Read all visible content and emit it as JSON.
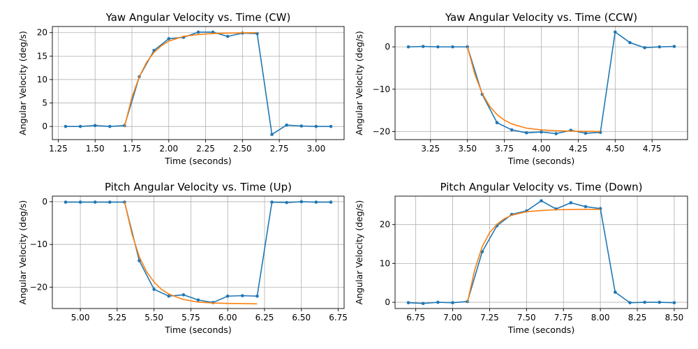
{
  "colors": {
    "measured": "#1f77b4",
    "fit": "#ff7f0e",
    "grid": "#b0b0b0",
    "axis": "#000000"
  },
  "chart_data": [
    {
      "type": "line",
      "title": "Yaw Angular Velocity vs. Time (CW)",
      "xlabel": "Time (seconds)",
      "ylabel": "Angular Velocity (deg/s)",
      "xlim": [
        1.21,
        3.19
      ],
      "ylim": [
        -2.8,
        21.3
      ],
      "xticks": [
        1.25,
        1.5,
        1.75,
        2.0,
        2.25,
        2.5,
        2.75,
        3.0
      ],
      "xtick_labels": [
        "1.25",
        "1.50",
        "1.75",
        "2.00",
        "2.25",
        "2.50",
        "2.75",
        "3.00"
      ],
      "yticks": [
        0,
        5,
        10,
        15,
        20
      ],
      "ytick_labels": [
        "0",
        "5",
        "10",
        "15",
        "20"
      ],
      "grid": true,
      "series": [
        {
          "role": "measured",
          "marker": true,
          "x": [
            1.3,
            1.4,
            1.5,
            1.6,
            1.7,
            1.8,
            1.9,
            2.0,
            2.1,
            2.2,
            2.3,
            2.4,
            2.5,
            2.6,
            2.7,
            2.8,
            2.9,
            3.0,
            3.1
          ],
          "y": [
            0.0,
            0.0,
            0.2,
            0.0,
            0.2,
            10.6,
            16.2,
            18.7,
            19.0,
            20.1,
            20.1,
            19.2,
            19.9,
            19.8,
            -1.7,
            0.3,
            0.1,
            0.0,
            0.0
          ]
        },
        {
          "role": "fit",
          "marker": false,
          "x": [
            1.7,
            1.75,
            1.8,
            1.85,
            1.9,
            1.95,
            2.0,
            2.1,
            2.2,
            2.3,
            2.4,
            2.5,
            2.6
          ],
          "y": [
            0.0,
            6.2,
            10.6,
            13.7,
            15.8,
            17.2,
            18.2,
            19.2,
            19.6,
            19.8,
            19.9,
            19.95,
            20.0
          ]
        }
      ]
    },
    {
      "type": "line",
      "title": "Yaw Angular Velocity vs. Time (CCW)",
      "xlabel": "Time (seconds)",
      "ylabel": "Angular Velocity (deg/s)",
      "xlim": [
        3.01,
        4.99
      ],
      "ylim": [
        -21.9,
        4.8
      ],
      "xticks": [
        3.25,
        3.5,
        3.75,
        4.0,
        4.25,
        4.5,
        4.75
      ],
      "xtick_labels": [
        "3.25",
        "3.50",
        "3.75",
        "4.00",
        "4.25",
        "4.50",
        "4.75"
      ],
      "yticks": [
        -20,
        -10,
        0
      ],
      "ytick_labels": [
        "−20",
        "−10",
        "0"
      ],
      "grid": true,
      "series": [
        {
          "role": "measured",
          "marker": true,
          "x": [
            3.1,
            3.2,
            3.3,
            3.4,
            3.5,
            3.6,
            3.7,
            3.8,
            3.9,
            4.0,
            4.1,
            4.2,
            4.3,
            4.4,
            4.5,
            4.6,
            4.7,
            4.8,
            4.9
          ],
          "y": [
            0.0,
            0.1,
            0.0,
            0.0,
            0.0,
            -11.2,
            -17.9,
            -19.6,
            -20.3,
            -20.1,
            -20.5,
            -19.7,
            -20.4,
            -20.2,
            3.5,
            1.0,
            -0.2,
            0.0,
            0.1
          ]
        },
        {
          "role": "fit",
          "marker": false,
          "x": [
            3.5,
            3.55,
            3.6,
            3.65,
            3.7,
            3.75,
            3.8,
            3.9,
            4.0,
            4.1,
            4.2,
            4.3,
            4.4
          ],
          "y": [
            0.0,
            -6.5,
            -11.0,
            -14.0,
            -16.0,
            -17.3,
            -18.2,
            -19.2,
            -19.6,
            -19.8,
            -19.9,
            -19.95,
            -20.0
          ]
        }
      ]
    },
    {
      "type": "line",
      "title": "Pitch Angular Velocity vs. Time (Up)",
      "xlabel": "Time (seconds)",
      "ylabel": "Angular Velocity (deg/s)",
      "xlim": [
        4.81,
        6.79
      ],
      "ylim": [
        -25.0,
        1.3
      ],
      "xticks": [
        5.0,
        5.25,
        5.5,
        5.75,
        6.0,
        6.25,
        6.5,
        6.75
      ],
      "xtick_labels": [
        "5.00",
        "5.25",
        "5.50",
        "5.75",
        "6.00",
        "6.25",
        "6.50",
        "6.75"
      ],
      "yticks": [
        -20,
        -10,
        0
      ],
      "ytick_labels": [
        "−20",
        "−10",
        "0"
      ],
      "grid": true,
      "series": [
        {
          "role": "measured",
          "marker": true,
          "x": [
            4.9,
            5.0,
            5.1,
            5.2,
            5.3,
            5.4,
            5.5,
            5.6,
            5.7,
            5.8,
            5.9,
            6.0,
            6.1,
            6.2,
            6.3,
            6.4,
            6.5,
            6.6,
            6.7
          ],
          "y": [
            -0.1,
            -0.1,
            -0.1,
            -0.1,
            -0.1,
            -13.8,
            -20.5,
            -22.1,
            -21.8,
            -23.0,
            -23.6,
            -22.1,
            -22.0,
            -22.1,
            -0.1,
            -0.2,
            0.0,
            -0.1,
            -0.1
          ]
        },
        {
          "role": "fit",
          "marker": false,
          "x": [
            5.3,
            5.35,
            5.4,
            5.45,
            5.5,
            5.55,
            5.6,
            5.7,
            5.8,
            5.9,
            6.0,
            6.1,
            6.2
          ],
          "y": [
            0.0,
            -7.5,
            -12.9,
            -16.4,
            -18.8,
            -20.5,
            -21.6,
            -22.9,
            -23.5,
            -23.7,
            -23.8,
            -23.85,
            -23.9
          ]
        }
      ]
    },
    {
      "type": "line",
      "title": "Pitch Angular Velocity vs. Time (Down)",
      "xlabel": "Time (seconds)",
      "ylabel": "Angular Velocity (deg/s)",
      "xlim": [
        6.61,
        8.59
      ],
      "ylim": [
        -1.6,
        27.3
      ],
      "xticks": [
        6.75,
        7.0,
        7.25,
        7.5,
        7.75,
        8.0,
        8.25,
        8.5
      ],
      "xtick_labels": [
        "6.75",
        "7.00",
        "7.25",
        "7.50",
        "7.75",
        "8.00",
        "8.25",
        "8.50"
      ],
      "yticks": [
        0,
        10,
        20
      ],
      "ytick_labels": [
        "0",
        "10",
        "20"
      ],
      "grid": true,
      "series": [
        {
          "role": "measured",
          "marker": true,
          "x": [
            6.7,
            6.8,
            6.9,
            7.0,
            7.1,
            7.2,
            7.3,
            7.4,
            7.5,
            7.6,
            7.7,
            7.8,
            7.9,
            8.0,
            8.1,
            8.2,
            8.3,
            8.4,
            8.5
          ],
          "y": [
            -0.1,
            -0.3,
            0.0,
            -0.1,
            0.2,
            13.0,
            19.7,
            22.6,
            23.5,
            26.1,
            24.0,
            25.6,
            24.6,
            24.1,
            2.6,
            -0.1,
            0.0,
            0.0,
            -0.1
          ]
        },
        {
          "role": "fit",
          "marker": false,
          "x": [
            7.1,
            7.15,
            7.2,
            7.25,
            7.3,
            7.35,
            7.4,
            7.5,
            7.6,
            7.7,
            7.8,
            7.9,
            8.0
          ],
          "y": [
            0.0,
            8.5,
            14.3,
            17.9,
            20.1,
            21.5,
            22.4,
            23.3,
            23.6,
            23.8,
            23.85,
            23.9,
            23.9
          ]
        }
      ]
    }
  ]
}
